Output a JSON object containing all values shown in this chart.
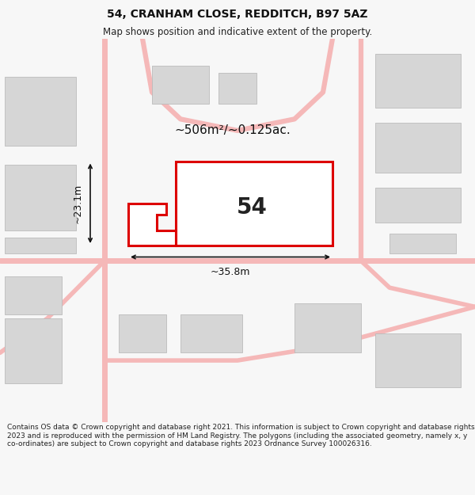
{
  "title": "54, CRANHAM CLOSE, REDDITCH, B97 5AZ",
  "subtitle": "Map shows position and indicative extent of the property.",
  "footer": "Contains OS data © Crown copyright and database right 2021. This information is subject to Crown copyright and database rights 2023 and is reproduced with the permission of HM Land Registry. The polygons (including the associated geometry, namely x, y co-ordinates) are subject to Crown copyright and database rights 2023 Ordnance Survey 100026316.",
  "bg_color": "#f7f7f7",
  "map_bg": "#ffffff",
  "plot_edge_color": "#dd0000",
  "plot_fill": "#ffffff",
  "road_color": "#f5b8b8",
  "building_color": "#d6d6d6",
  "building_edge": "#bbbbbb",
  "dim_color": "#111111",
  "label_54": "54",
  "area_label": "~506m²/~0.125ac.",
  "dim_width": "~35.8m",
  "dim_height": "~23.1m",
  "title_fontsize": 10,
  "subtitle_fontsize": 8.5,
  "footer_fontsize": 6.5
}
